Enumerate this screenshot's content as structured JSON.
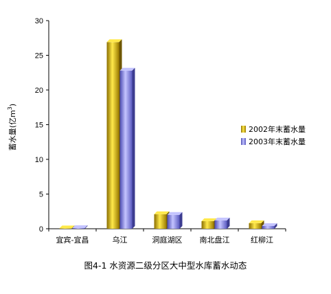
{
  "chart_data": {
    "type": "bar",
    "ylabel": "蓄水量(亿m3)",
    "ylabel_main": "蓄水量(亿m",
    "ylabel_sup": "3",
    "ylabel_tail": ")",
    "ylim": [
      0,
      30
    ],
    "yticks": [
      0,
      5,
      10,
      15,
      20,
      25,
      30
    ],
    "categories": [
      "宜宾-宜昌",
      "乌江",
      "洞庭湖区",
      "南北盘江",
      "红柳江"
    ],
    "series": [
      {
        "name": "2002年末蓄水量",
        "color": "#d4b000",
        "values": [
          0,
          26.9,
          2.1,
          1.1,
          0.8
        ]
      },
      {
        "name": "2003年末蓄水量",
        "color": "#8c8cf0",
        "values": [
          0.1,
          22.8,
          2.0,
          1.2,
          0.4
        ]
      }
    ],
    "legend_position": "right",
    "grid": false
  },
  "caption": "图4-1   水资源二级分区大中型水库蓄水动态"
}
